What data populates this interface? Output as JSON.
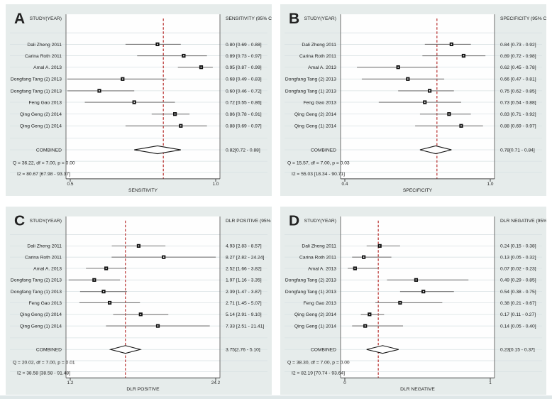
{
  "chart_data": {
    "type": "forest",
    "description": "Four-panel forest plot meta-analysis figure (A: sensitivity, B: specificity, C: positive likelihood ratio, D: negative likelihood ratio)",
    "colors": {
      "panel_bg": "#e6eceb",
      "plot_bg": "#fefefe",
      "gridline": "#d8e1e3",
      "border": "#6e6e6e",
      "axis": "#444444",
      "ci_line": "#767676",
      "marker": "#121212",
      "marker_center": "#ffffff",
      "reference_line": "#b8302f",
      "text": "#222222",
      "letter": "#2b2423",
      "strip": "#dfe7e8"
    },
    "panels": [
      {
        "letter": "A",
        "col_header": "STUDY(YEAR)",
        "value_header": "SENSITIVITY (95% CI)",
        "xlabel": "SENSITIVITY",
        "axis": {
          "min": 0.5,
          "max": 1.0,
          "scale": "linear",
          "ticks": [
            {
              "v": 0.5,
              "label": "0.5"
            },
            {
              "v": 1.0,
              "label": "1.0"
            }
          ]
        },
        "studies": [
          {
            "name": "Dali Zheng 2011",
            "est": 0.8,
            "lo": 0.69,
            "hi": 0.88,
            "label": "0.80 [0.69 - 0.88]"
          },
          {
            "name": "Carina Roth 2011",
            "est": 0.89,
            "lo": 0.73,
            "hi": 0.97,
            "label": "0.89 [0.73 - 0.97]"
          },
          {
            "name": "Amal A. 2013",
            "est": 0.95,
            "lo": 0.87,
            "hi": 0.99,
            "label": "0.95 [0.87 - 0.99]"
          },
          {
            "name": "Dongfang Tang (2) 2013",
            "est": 0.68,
            "lo": 0.49,
            "hi": 0.83,
            "label": "0.68 [0.49 - 0.83]"
          },
          {
            "name": "Dongfang Tang (1) 2013",
            "est": 0.6,
            "lo": 0.46,
            "hi": 0.72,
            "label": "0.60 [0.46 - 0.72]"
          },
          {
            "name": "Feng Gao 2013",
            "est": 0.72,
            "lo": 0.55,
            "hi": 0.86,
            "label": "0.72 [0.55 - 0.86]"
          },
          {
            "name": "Qing Geng (2) 2014",
            "est": 0.86,
            "lo": 0.78,
            "hi": 0.91,
            "label": "0.86 [0.78 - 0.91]"
          },
          {
            "name": "Qing Geng (1) 2014",
            "est": 0.88,
            "lo": 0.69,
            "hi": 0.97,
            "label": "0.88 [0.69 - 0.97]"
          }
        ],
        "combined": {
          "name": "COMBINED",
          "est": 0.82,
          "lo": 0.72,
          "hi": 0.88,
          "label": "0.82[0.72 - 0.88]"
        },
        "q_text": "Q = 36.22, df = 7.00, p =  0.00",
        "i2_text": "I2 = 80.67 [67.98 - 93.37]"
      },
      {
        "letter": "B",
        "col_header": "STUDY(YEAR)",
        "value_header": "SPECIFICITY (95% CI)",
        "xlabel": "SPECIFICITY",
        "axis": {
          "min": 0.4,
          "max": 1.0,
          "scale": "linear",
          "ticks": [
            {
              "v": 0.4,
              "label": "0.4"
            },
            {
              "v": 1.0,
              "label": "1.0"
            }
          ]
        },
        "studies": [
          {
            "name": "Dali Zheng 2011",
            "est": 0.84,
            "lo": 0.73,
            "hi": 0.92,
            "label": "0.84 [0.73 - 0.92]"
          },
          {
            "name": "Carina Roth 2011",
            "est": 0.89,
            "lo": 0.72,
            "hi": 0.98,
            "label": "0.89 [0.72 - 0.98]"
          },
          {
            "name": "Amal A. 2013",
            "est": 0.62,
            "lo": 0.45,
            "hi": 0.78,
            "label": "0.62 [0.45 - 0.78]"
          },
          {
            "name": "Dongfang Tang (2) 2013",
            "est": 0.66,
            "lo": 0.47,
            "hi": 0.81,
            "label": "0.66 [0.47 - 0.81]"
          },
          {
            "name": "Dongfang Tang (1) 2013",
            "est": 0.75,
            "lo": 0.62,
            "hi": 0.85,
            "label": "0.75 [0.62 - 0.85]"
          },
          {
            "name": "Feng Gao 2013",
            "est": 0.73,
            "lo": 0.54,
            "hi": 0.88,
            "label": "0.73 [0.54 - 0.88]"
          },
          {
            "name": "Qing Geng (2) 2014",
            "est": 0.83,
            "lo": 0.71,
            "hi": 0.92,
            "label": "0.83 [0.71 - 0.92]"
          },
          {
            "name": "Qing Geng (1) 2014",
            "est": 0.88,
            "lo": 0.69,
            "hi": 0.97,
            "label": "0.88 [0.69 - 0.97]"
          }
        ],
        "combined": {
          "name": "COMBINED",
          "est": 0.78,
          "lo": 0.71,
          "hi": 0.84,
          "label": "0.78[0.71 - 0.84]"
        },
        "q_text": "Q = 15.57, df = 7.00, p =  0.03",
        "i2_text": "I2 = 55.03 [18.34 - 90.71]"
      },
      {
        "letter": "C",
        "col_header": "STUDY(YEAR)",
        "value_header": "DLR POSITIVE (95% CI)",
        "xlabel": "DLR POSITIVE",
        "axis": {
          "min": 1.2,
          "max": 24.2,
          "scale": "log",
          "ticks": [
            {
              "v": 1.2,
              "label": "1.2"
            },
            {
              "v": 24.2,
              "label": "24.2"
            }
          ]
        },
        "studies": [
          {
            "name": "Dali Zheng 2011",
            "est": 4.93,
            "lo": 2.83,
            "hi": 8.57,
            "label": "4.93 [2.83 - 8.57]"
          },
          {
            "name": "Carina Roth 2011",
            "est": 8.27,
            "lo": 2.82,
            "hi": 24.24,
            "label": "8.27 [2.82 - 24.24]"
          },
          {
            "name": "Amal A. 2013",
            "est": 2.52,
            "lo": 1.66,
            "hi": 3.82,
            "label": "2.52 [1.66 - 3.82]"
          },
          {
            "name": "Dongfang Tang (2) 2013",
            "est": 1.97,
            "lo": 1.16,
            "hi": 3.35,
            "label": "1.97 [1.16 - 3.35]"
          },
          {
            "name": "Dongfang Tang (1) 2013",
            "est": 2.39,
            "lo": 1.47,
            "hi": 3.87,
            "label": "2.39 [1.47 - 3.87]"
          },
          {
            "name": "Feng Gao 2013",
            "est": 2.71,
            "lo": 1.45,
            "hi": 5.07,
            "label": "2.71 [1.45 - 5.07]"
          },
          {
            "name": "Qing Geng (2) 2014",
            "est": 5.14,
            "lo": 2.91,
            "hi": 9.1,
            "label": "5.14 [2.91 - 9.10]"
          },
          {
            "name": "Qing Geng (1) 2014",
            "est": 7.33,
            "lo": 2.51,
            "hi": 21.41,
            "label": "7.33 [2.51 - 21.41]"
          }
        ],
        "combined": {
          "name": "COMBINED",
          "est": 3.75,
          "lo": 2.76,
          "hi": 5.1,
          "label": "3.75[2.76 - 5.10]"
        },
        "q_text": "Q = 20.02, df = 7.00, p =  0.01",
        "i2_text": "I2 = 38.58 [38.58 - 91.48]"
      },
      {
        "letter": "D",
        "col_header": "STUDY(YEAR)",
        "value_header": "DLR NEGATIVE (95% CI)",
        "xlabel": "DLR NEGATIVE",
        "axis": {
          "min": 0.0,
          "max": 1.0,
          "scale": "linear",
          "ticks": [
            {
              "v": 0.0,
              "label": "0"
            },
            {
              "v": 1.0,
              "label": "1"
            }
          ]
        },
        "studies": [
          {
            "name": "Dali Zheng 2011",
            "est": 0.24,
            "lo": 0.15,
            "hi": 0.38,
            "label": "0.24 [0.15 - 0.38]"
          },
          {
            "name": "Carina Roth 2011",
            "est": 0.13,
            "lo": 0.05,
            "hi": 0.32,
            "label": "0.13 [0.05 - 0.32]"
          },
          {
            "name": "Amal A. 2013",
            "est": 0.07,
            "lo": 0.02,
            "hi": 0.23,
            "label": "0.07 [0.02 - 0.23]"
          },
          {
            "name": "Dongfang Tang (2) 2013",
            "est": 0.49,
            "lo": 0.29,
            "hi": 0.85,
            "label": "0.49 [0.29 - 0.85]"
          },
          {
            "name": "Dongfang Tang (1) 2013",
            "est": 0.54,
            "lo": 0.38,
            "hi": 0.75,
            "label": "0.54 [0.38 - 0.75]"
          },
          {
            "name": "Feng Gao 2013",
            "est": 0.38,
            "lo": 0.21,
            "hi": 0.67,
            "label": "0.38 [0.21 - 0.67]"
          },
          {
            "name": "Qing Geng (2) 2014",
            "est": 0.17,
            "lo": 0.11,
            "hi": 0.27,
            "label": "0.17 [0.11 - 0.27]"
          },
          {
            "name": "Qing Geng (1) 2014",
            "est": 0.14,
            "lo": 0.05,
            "hi": 0.4,
            "label": "0.14 [0.05 - 0.40]"
          }
        ],
        "combined": {
          "name": "COMBINED",
          "est": 0.23,
          "lo": 0.15,
          "hi": 0.37,
          "label": "0.23[0.15 - 0.37]"
        },
        "q_text": "Q = 38.30, df = 7.00, p =  0.00",
        "i2_text": "I2 = 82.19 [70.74 - 93.64]"
      }
    ]
  }
}
